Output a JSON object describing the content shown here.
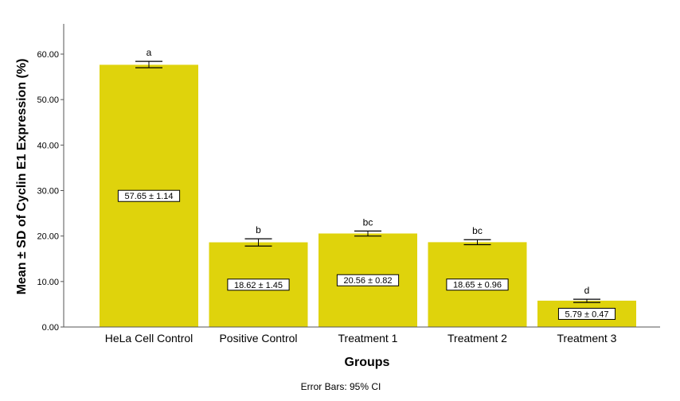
{
  "chart_data": {
    "type": "bar",
    "categories": [
      "HeLa Cell Control",
      "Positive Control",
      "Treatment 1",
      "Treatment 2",
      "Treatment 3"
    ],
    "values": [
      57.65,
      18.62,
      20.56,
      18.65,
      5.79
    ],
    "ci_low": [
      57.0,
      17.8,
      20.0,
      18.1,
      5.4
    ],
    "ci_high": [
      58.4,
      19.4,
      21.1,
      19.2,
      6.1
    ],
    "data_labels": [
      "57.65 ± 1.14",
      "18.62 ± 1.45",
      "20.56 ± 0.82",
      "18.65 ± 0.96",
      "5.79 ± 0.47"
    ],
    "significance_letters": [
      "a",
      "b",
      "bc",
      "bc",
      "d"
    ],
    "xlabel": "Groups",
    "ylabel": "Mean ± SD of Cyclin E1 Expression (%)",
    "ylim": [
      0,
      65
    ],
    "yticks": [
      0,
      10,
      20,
      30,
      40,
      50,
      60
    ],
    "ytick_labels": [
      "0.00",
      "10.00",
      "20.00",
      "30.00",
      "40.00",
      "50.00",
      "60.00"
    ],
    "footnote": "Error Bars: 95% CI",
    "bar_color": "#dfd30c",
    "grid": false
  }
}
